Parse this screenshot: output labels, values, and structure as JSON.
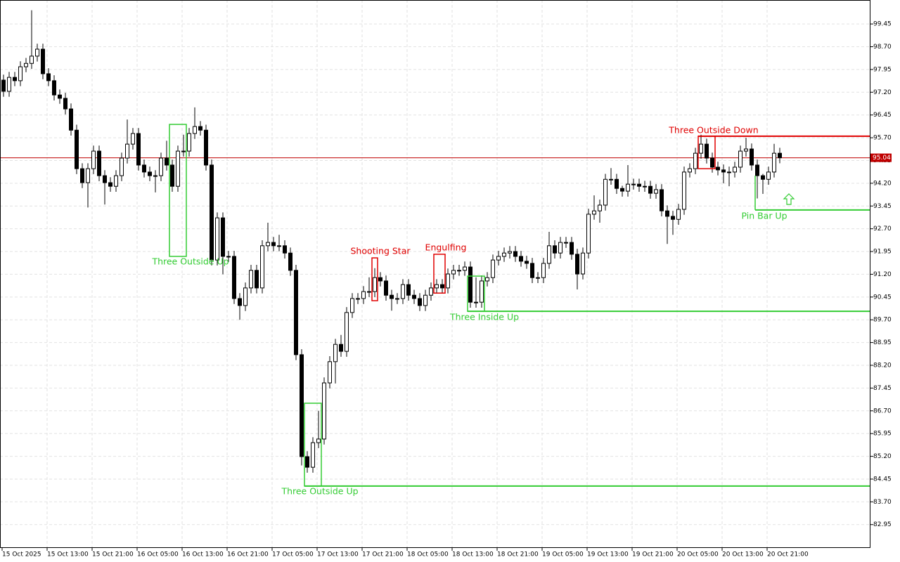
{
  "chart_data": {
    "type": "candlestick",
    "ylim": [
      82.18,
      100.24
    ],
    "yticks": [
      82.95,
      {
        "value": 83.7,
        "label": "83.70"
      },
      84.45,
      {
        "value": 85.2,
        "label": "85.20"
      },
      85.95,
      {
        "value": 86.7,
        "label": "86.70"
      },
      87.45,
      {
        "value": 88.2,
        "label": "88.20"
      },
      88.95,
      {
        "value": 89.7,
        "label": "89.70"
      },
      90.45,
      {
        "value": 91.2,
        "label": "91.20"
      },
      91.95,
      {
        "value": 92.7,
        "label": "92.70"
      },
      93.45,
      {
        "value": 94.2,
        "label": "94.20"
      },
      94.95,
      {
        "value": 95.7,
        "label": "95.70"
      },
      96.45,
      {
        "value": 97.2,
        "label": "97.20"
      },
      97.95,
      {
        "value": 98.7,
        "label": "98.70"
      },
      99.45
    ],
    "xticks": [
      {
        "value": 0,
        "label": "15 Oct 2025"
      },
      {
        "value": 8,
        "label": "15 Oct 13:00"
      },
      {
        "value": 16,
        "label": "15 Oct 21:00"
      },
      {
        "value": 24,
        "label": "16 Oct 05:00"
      },
      {
        "value": 32,
        "label": "16 Oct 13:00"
      },
      {
        "value": 40,
        "label": "16 Oct 21:00"
      },
      {
        "value": 48,
        "label": "17 Oct 05:00"
      },
      {
        "value": 56,
        "label": "17 Oct 13:00"
      },
      {
        "value": 64,
        "label": "17 Oct 21:00"
      },
      {
        "value": 72,
        "label": "18 Oct 05:00"
      },
      {
        "value": 80,
        "label": "18 Oct 13:00"
      },
      {
        "value": 88,
        "label": "18 Oct 21:00"
      },
      {
        "value": 96,
        "label": "19 Oct 05:00"
      },
      {
        "value": 104,
        "label": "19 Oct 13:00"
      },
      {
        "value": 112,
        "label": "19 Oct 21:00"
      },
      {
        "value": 120,
        "label": "20 Oct 05:00"
      },
      {
        "value": 128,
        "label": "20 Oct 13:00"
      },
      {
        "value": 136,
        "label": "20 Oct 21:00"
      }
    ],
    "grid": true,
    "current_price": 95.04,
    "up_color": "#ffffff",
    "down_color": "#000000",
    "current_color": "#c00000",
    "open": [
      97.6,
      97.23,
      97.69,
      97.58,
      98.04,
      98.15,
      98.39,
      98.62,
      97.81,
      97.58,
      97.11,
      97.0,
      96.65,
      95.95,
      94.68,
      94.22,
      94.68,
      95.26,
      94.45,
      94.22,
      94.1,
      94.45,
      95.03,
      95.49,
      95.84,
      94.8,
      94.57,
      94.45,
      94.45,
      95.03,
      94.8,
      94.1,
      95.26,
      95.26,
      95.84,
      96.07,
      95.95,
      94.8,
      91.67,
      93.06,
      91.79,
      91.79,
      90.4,
      90.17,
      90.75,
      91.33,
      90.75,
      92.14,
      92.25,
      92.14,
      92.14,
      91.9,
      91.33,
      88.55,
      85.19,
      84.84,
      85.65,
      85.77,
      87.62,
      88.32,
      88.89,
      88.66,
      89.94,
      90.4,
      90.4,
      90.63,
      90.63,
      91.09,
      90.98,
      90.51,
      90.4,
      90.4,
      90.86,
      90.51,
      90.4,
      90.17,
      90.51,
      90.75,
      90.86,
      90.75,
      91.21,
      91.33,
      91.33,
      91.44,
      90.28,
      90.28,
      90.98,
      91.09,
      91.67,
      91.79,
      91.9,
      91.95,
      91.79,
      91.63,
      91.56,
      91.09,
      91.09,
      91.56,
      92.14,
      91.9,
      92.25,
      92.25,
      91.86,
      91.21,
      91.9,
      93.18,
      93.29,
      93.48,
      94.33,
      94.33,
      94.03,
      93.94,
      94.17,
      94.17,
      94.1,
      94.1,
      93.87,
      93.99,
      93.29,
      93.11,
      93.01,
      93.34,
      94.57,
      94.68,
      95.19,
      95.49,
      95.03,
      94.73,
      94.64,
      94.57,
      94.57,
      94.73,
      95.26,
      95.33,
      94.8,
      94.45,
      94.33,
      94.57,
      95.19
    ],
    "high": [
      97.78,
      97.87,
      97.87,
      98.22,
      98.33,
      99.9,
      98.8,
      98.8,
      97.99,
      97.76,
      97.29,
      97.18,
      96.83,
      96.13,
      94.86,
      94.86,
      95.44,
      95.44,
      94.63,
      94.4,
      94.63,
      95.21,
      96.3,
      96.02,
      96.02,
      94.98,
      94.75,
      94.63,
      95.21,
      95.6,
      94.98,
      95.44,
      95.8,
      96.02,
      96.7,
      96.25,
      96.13,
      94.98,
      93.24,
      93.24,
      91.97,
      91.97,
      90.58,
      90.93,
      91.51,
      91.51,
      92.32,
      92.9,
      92.43,
      92.5,
      92.32,
      92.08,
      91.51,
      88.73,
      85.37,
      85.83,
      86.7,
      87.8,
      88.5,
      89.07,
      89.2,
      90.12,
      90.58,
      90.58,
      90.81,
      91.1,
      91.4,
      91.27,
      91.16,
      90.69,
      90.58,
      91.04,
      91.04,
      90.69,
      90.58,
      90.69,
      90.93,
      91.04,
      91.04,
      91.39,
      91.51,
      91.51,
      91.62,
      91.62,
      91.1,
      91.16,
      91.27,
      91.85,
      91.97,
      92.08,
      92.13,
      92.13,
      91.97,
      91.81,
      91.74,
      91.27,
      91.74,
      92.6,
      92.32,
      92.43,
      92.43,
      92.43,
      92.04,
      92.08,
      93.36,
      93.8,
      93.66,
      94.51,
      94.7,
      94.51,
      94.12,
      94.8,
      94.35,
      94.35,
      94.28,
      94.28,
      94.17,
      94.17,
      93.47,
      93.29,
      93.52,
      94.75,
      94.86,
      95.37,
      95.8,
      95.67,
      95.21,
      94.91,
      94.82,
      94.75,
      94.91,
      95.44,
      95.7,
      95.51,
      94.98,
      94.51,
      94.75,
      95.5,
      95.37
    ],
    "low": [
      97.05,
      97.05,
      97.4,
      97.4,
      97.86,
      97.97,
      98.21,
      97.63,
      97.4,
      96.93,
      96.82,
      96.47,
      95.77,
      94.5,
      94.04,
      93.4,
      94.5,
      94.27,
      93.5,
      93.92,
      93.92,
      94.27,
      94.85,
      95.31,
      94.62,
      94.39,
      94.27,
      93.9,
      94.27,
      94.62,
      93.92,
      93.92,
      95.08,
      95.08,
      95.66,
      95.77,
      94.62,
      91.49,
      91.49,
      91.2,
      91.61,
      90.22,
      89.7,
      89.99,
      90.57,
      90.57,
      90.57,
      91.96,
      91.96,
      91.96,
      91.72,
      91.15,
      88.37,
      84.9,
      84.66,
      84.66,
      85.47,
      85.59,
      87.44,
      87.6,
      88.48,
      88.48,
      89.76,
      90.22,
      90.22,
      90.45,
      90.45,
      90.8,
      90.33,
      90.0,
      90.22,
      90.22,
      90.33,
      90.22,
      89.99,
      89.99,
      90.33,
      90.57,
      90.57,
      90.57,
      91.03,
      91.15,
      91.15,
      90.1,
      90.1,
      90.1,
      90.8,
      90.91,
      91.49,
      91.61,
      91.72,
      91.61,
      91.45,
      91.38,
      90.91,
      90.91,
      90.91,
      91.38,
      91.72,
      91.72,
      92.07,
      91.68,
      90.7,
      91.03,
      91.72,
      93.0,
      92.9,
      93.3,
      94.15,
      93.85,
      93.76,
      93.76,
      93.99,
      93.92,
      93.92,
      93.69,
      93.69,
      93.11,
      92.2,
      92.5,
      92.83,
      93.16,
      94.39,
      94.5,
      95.01,
      94.85,
      94.55,
      94.46,
      94.2,
      94.1,
      94.39,
      94.55,
      95.08,
      94.62,
      93.7,
      93.85,
      94.15,
      94.39,
      94.86
    ],
    "close": [
      97.23,
      97.69,
      97.58,
      98.04,
      98.15,
      98.39,
      98.62,
      97.81,
      97.58,
      97.11,
      97.0,
      96.65,
      95.95,
      94.68,
      94.22,
      94.68,
      95.26,
      94.45,
      94.22,
      94.1,
      94.45,
      95.03,
      95.49,
      95.84,
      94.8,
      94.57,
      94.45,
      94.45,
      95.03,
      94.8,
      94.1,
      95.26,
      95.26,
      95.84,
      96.07,
      95.95,
      94.8,
      91.67,
      93.06,
      91.79,
      91.79,
      90.4,
      90.17,
      90.75,
      91.33,
      90.75,
      92.14,
      92.25,
      92.14,
      92.14,
      91.9,
      91.33,
      88.55,
      85.19,
      84.84,
      85.65,
      85.77,
      87.62,
      88.32,
      88.89,
      88.66,
      89.94,
      90.4,
      90.4,
      90.63,
      90.63,
      91.09,
      90.98,
      90.51,
      90.4,
      90.4,
      90.86,
      90.51,
      90.4,
      90.17,
      90.51,
      90.75,
      90.86,
      90.75,
      91.21,
      91.33,
      91.33,
      91.44,
      90.28,
      90.28,
      90.98,
      91.09,
      91.67,
      91.79,
      91.9,
      91.95,
      91.79,
      91.63,
      91.56,
      91.09,
      91.09,
      91.56,
      92.14,
      91.9,
      92.25,
      92.25,
      91.86,
      91.21,
      91.9,
      93.18,
      93.29,
      93.48,
      94.33,
      94.33,
      94.03,
      93.94,
      94.17,
      94.17,
      94.1,
      94.1,
      93.87,
      93.99,
      93.29,
      93.11,
      93.01,
      93.34,
      94.57,
      94.68,
      95.19,
      95.49,
      95.03,
      94.73,
      94.64,
      94.57,
      94.57,
      94.73,
      95.26,
      95.33,
      94.8,
      94.45,
      94.33,
      94.57,
      95.19,
      95.04
    ],
    "patterns": [
      {
        "label": "Three Outside Up",
        "color": "#33cc33",
        "start": 30,
        "end": 32,
        "top": 96.14,
        "bottom": 91.79
      },
      {
        "label": "Three Outside Up",
        "color": "#33cc33",
        "start": 54,
        "end": 56,
        "top": 86.95,
        "bottom": 84.22,
        "level": 84.22
      },
      {
        "label": "Shooting Star",
        "color": "#e00000",
        "start": 66,
        "end": 66,
        "top": 91.74,
        "bottom": 90.33
      },
      {
        "label": "Engulfing",
        "color": "#e00000",
        "start": 77,
        "end": 78,
        "top": 91.86,
        "bottom": 90.58
      },
      {
        "label": "Three Inside Up",
        "color": "#33cc33",
        "start": 83,
        "end": 85,
        "top": 91.14,
        "bottom": 89.98,
        "level": 89.98
      },
      {
        "label": "Three Outside Down",
        "color": "#e00000",
        "start": 124,
        "end": 126,
        "top": 95.75,
        "bottom": 94.68,
        "level": 95.75
      },
      {
        "label": "Pin Bar Up",
        "color": "#33cc33",
        "start": 134,
        "end": 134,
        "top": 94.45,
        "bottom": 93.32,
        "level": 93.32
      }
    ]
  }
}
